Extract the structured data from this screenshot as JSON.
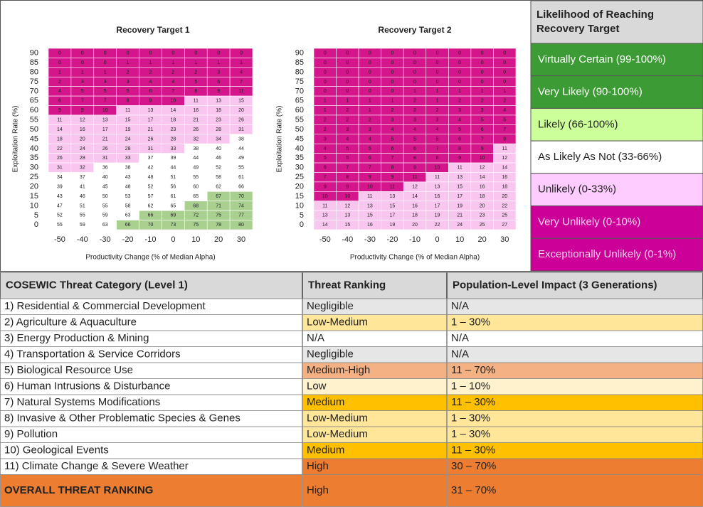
{
  "chart_data": [
    {
      "type": "heatmap",
      "title": "Recovery Target 1",
      "ylabel": "Exploitation Rate (%)",
      "xlabel": "Productivity Change (% of Median Alpha)",
      "rows": [
        90,
        85,
        80,
        75,
        70,
        65,
        60,
        55,
        50,
        45,
        40,
        35,
        30,
        25,
        20,
        15,
        10,
        5,
        0
      ],
      "columns": [
        -50,
        -40,
        -30,
        -20,
        -10,
        0,
        10,
        20,
        30
      ],
      "values": [
        [
          0,
          0,
          0,
          0,
          0,
          0,
          0,
          0,
          0
        ],
        [
          0,
          0,
          0,
          1,
          1,
          1,
          1,
          1,
          1
        ],
        [
          1,
          1,
          1,
          2,
          2,
          2,
          2,
          3,
          4
        ],
        [
          2,
          3,
          3,
          3,
          4,
          4,
          5,
          6,
          7
        ],
        [
          4,
          5,
          5,
          5,
          6,
          7,
          8,
          9,
          11
        ],
        [
          6,
          7,
          7,
          8,
          9,
          10,
          11,
          13,
          15
        ],
        [
          9,
          9,
          10,
          11,
          13,
          14,
          16,
          18,
          20
        ],
        [
          11,
          12,
          13,
          15,
          17,
          18,
          21,
          23,
          26
        ],
        [
          14,
          16,
          17,
          19,
          21,
          23,
          26,
          28,
          31
        ],
        [
          18,
          20,
          21,
          24,
          26,
          28,
          32,
          34,
          38
        ],
        [
          22,
          24,
          26,
          28,
          31,
          33,
          38,
          40,
          44
        ],
        [
          26,
          28,
          31,
          33,
          37,
          39,
          44,
          46,
          49
        ],
        [
          31,
          32,
          36,
          38,
          42,
          44,
          49,
          52,
          55
        ],
        [
          34,
          37,
          40,
          43,
          48,
          51,
          55,
          58,
          61
        ],
        [
          39,
          41,
          45,
          48,
          52,
          56,
          60,
          62,
          66
        ],
        [
          43,
          46,
          50,
          53,
          57,
          61,
          65,
          67,
          70
        ],
        [
          47,
          51,
          55,
          58,
          62,
          65,
          68,
          71,
          74
        ],
        [
          52,
          55,
          59,
          63,
          66,
          69,
          72,
          75,
          77
        ],
        [
          55,
          59,
          63,
          66,
          70,
          73,
          75,
          78,
          80
        ]
      ],
      "colors": [
        [
          "#d4158c",
          "#d4158c",
          "#d4158c",
          "#d4158c",
          "#d4158c",
          "#d4158c",
          "#d4158c",
          "#d4158c",
          "#d4158c"
        ],
        [
          "#d4158c",
          "#d4158c",
          "#d4158c",
          "#d4158c",
          "#d4158c",
          "#d4158c",
          "#d4158c",
          "#d4158c",
          "#d4158c"
        ],
        [
          "#d4158c",
          "#d4158c",
          "#d4158c",
          "#d4158c",
          "#d4158c",
          "#d4158c",
          "#d4158c",
          "#d4158c",
          "#d4158c"
        ],
        [
          "#d4158c",
          "#d4158c",
          "#d4158c",
          "#d4158c",
          "#d4158c",
          "#d4158c",
          "#d4158c",
          "#d4158c",
          "#d4158c"
        ],
        [
          "#d4158c",
          "#d4158c",
          "#d4158c",
          "#d4158c",
          "#d4158c",
          "#d4158c",
          "#d4158c",
          "#d4158c",
          "#d4158c"
        ],
        [
          "#d4158c",
          "#d4158c",
          "#d4158c",
          "#d4158c",
          "#d4158c",
          "#d4158c",
          "#f9c6ef",
          "#f9c6ef",
          "#f9c6ef"
        ],
        [
          "#d4158c",
          "#d4158c",
          "#d4158c",
          "#f9c6ef",
          "#f9c6ef",
          "#f9c6ef",
          "#f9c6ef",
          "#f9c6ef",
          "#f9c6ef"
        ],
        [
          "#f9c6ef",
          "#f9c6ef",
          "#f9c6ef",
          "#f9c6ef",
          "#f9c6ef",
          "#f9c6ef",
          "#f9c6ef",
          "#f9c6ef",
          "#f9c6ef"
        ],
        [
          "#f9c6ef",
          "#f9c6ef",
          "#f9c6ef",
          "#f9c6ef",
          "#f9c6ef",
          "#f9c6ef",
          "#f9c6ef",
          "#f9c6ef",
          "#f9c6ef"
        ],
        [
          "#f9c6ef",
          "#f9c6ef",
          "#f9c6ef",
          "#f9c6ef",
          "#f9c6ef",
          "#f9c6ef",
          "#f9c6ef",
          "#f9c6ef",
          "#ffffff"
        ],
        [
          "#f9c6ef",
          "#f9c6ef",
          "#f9c6ef",
          "#f9c6ef",
          "#f9c6ef",
          "#f9c6ef",
          "#ffffff",
          "#ffffff",
          "#ffffff"
        ],
        [
          "#f9c6ef",
          "#f9c6ef",
          "#f9c6ef",
          "#f9c6ef",
          "#ffffff",
          "#ffffff",
          "#ffffff",
          "#ffffff",
          "#ffffff"
        ],
        [
          "#f9c6ef",
          "#f9c6ef",
          "#ffffff",
          "#ffffff",
          "#ffffff",
          "#ffffff",
          "#ffffff",
          "#ffffff",
          "#ffffff"
        ],
        [
          "#ffffff",
          "#ffffff",
          "#ffffff",
          "#ffffff",
          "#ffffff",
          "#ffffff",
          "#ffffff",
          "#ffffff",
          "#ffffff"
        ],
        [
          "#ffffff",
          "#ffffff",
          "#ffffff",
          "#ffffff",
          "#ffffff",
          "#ffffff",
          "#ffffff",
          "#ffffff",
          "#ffffff"
        ],
        [
          "#ffffff",
          "#ffffff",
          "#ffffff",
          "#ffffff",
          "#ffffff",
          "#ffffff",
          "#ffffff",
          "#a9d08e",
          "#a9d08e"
        ],
        [
          "#ffffff",
          "#ffffff",
          "#ffffff",
          "#ffffff",
          "#ffffff",
          "#ffffff",
          "#a9d08e",
          "#a9d08e",
          "#a9d08e"
        ],
        [
          "#ffffff",
          "#ffffff",
          "#ffffff",
          "#ffffff",
          "#a9d08e",
          "#a9d08e",
          "#a9d08e",
          "#a9d08e",
          "#a9d08e"
        ],
        [
          "#ffffff",
          "#ffffff",
          "#ffffff",
          "#a9d08e",
          "#a9d08e",
          "#a9d08e",
          "#a9d08e",
          "#a9d08e",
          "#a9d08e"
        ]
      ]
    },
    {
      "type": "heatmap",
      "title": "Recovery Target 2",
      "ylabel": "Exploitation Rate (%)",
      "xlabel": "Productivity Change (% of Median Alpha)",
      "rows": [
        90,
        85,
        80,
        75,
        70,
        65,
        60,
        55,
        50,
        45,
        40,
        35,
        30,
        25,
        20,
        15,
        10,
        5,
        0
      ],
      "columns": [
        -50,
        -40,
        -30,
        -20,
        -10,
        0,
        10,
        20,
        30
      ],
      "values": [
        [
          0,
          0,
          0,
          0,
          0,
          0,
          0,
          0,
          0
        ],
        [
          0,
          0,
          0,
          0,
          0,
          0,
          0,
          0,
          0
        ],
        [
          0,
          0,
          0,
          0,
          0,
          0,
          0,
          0,
          0
        ],
        [
          0,
          0,
          0,
          0,
          0,
          0,
          0,
          0,
          0
        ],
        [
          0,
          0,
          0,
          0,
          1,
          1,
          1,
          1,
          1
        ],
        [
          1,
          1,
          1,
          1,
          2,
          1,
          2,
          2,
          2
        ],
        [
          1,
          2,
          1,
          2,
          2,
          2,
          3,
          3,
          4
        ],
        [
          2,
          2,
          2,
          3,
          3,
          3,
          4,
          5,
          5
        ],
        [
          2,
          3,
          3,
          4,
          4,
          4,
          5,
          6,
          7
        ],
        [
          3,
          4,
          4,
          5,
          5,
          5,
          6,
          7,
          9
        ],
        [
          4,
          5,
          5,
          6,
          6,
          7,
          8,
          9,
          11
        ],
        [
          5,
          5,
          6,
          7,
          8,
          8,
          9,
          10,
          12
        ],
        [
          6,
          7,
          7,
          8,
          9,
          10,
          11,
          12,
          14
        ],
        [
          7,
          8,
          9,
          9,
          11,
          11,
          13,
          14,
          16
        ],
        [
          9,
          9,
          10,
          11,
          12,
          13,
          15,
          16,
          18
        ],
        [
          10,
          10,
          11,
          13,
          14,
          16,
          17,
          18,
          20
        ],
        [
          11,
          12,
          13,
          15,
          16,
          17,
          19,
          20,
          22
        ],
        [
          13,
          13,
          15,
          17,
          18,
          19,
          21,
          23,
          25
        ],
        [
          14,
          15,
          16,
          19,
          20,
          22,
          24,
          25,
          27
        ]
      ],
      "colors": [
        [
          "#d4158c",
          "#d4158c",
          "#d4158c",
          "#d4158c",
          "#d4158c",
          "#d4158c",
          "#d4158c",
          "#d4158c",
          "#d4158c"
        ],
        [
          "#d4158c",
          "#d4158c",
          "#d4158c",
          "#d4158c",
          "#d4158c",
          "#d4158c",
          "#d4158c",
          "#d4158c",
          "#d4158c"
        ],
        [
          "#d4158c",
          "#d4158c",
          "#d4158c",
          "#d4158c",
          "#d4158c",
          "#d4158c",
          "#d4158c",
          "#d4158c",
          "#d4158c"
        ],
        [
          "#d4158c",
          "#d4158c",
          "#d4158c",
          "#d4158c",
          "#d4158c",
          "#d4158c",
          "#d4158c",
          "#d4158c",
          "#d4158c"
        ],
        [
          "#d4158c",
          "#d4158c",
          "#d4158c",
          "#d4158c",
          "#d4158c",
          "#d4158c",
          "#d4158c",
          "#d4158c",
          "#d4158c"
        ],
        [
          "#d4158c",
          "#d4158c",
          "#d4158c",
          "#d4158c",
          "#d4158c",
          "#d4158c",
          "#d4158c",
          "#d4158c",
          "#d4158c"
        ],
        [
          "#d4158c",
          "#d4158c",
          "#d4158c",
          "#d4158c",
          "#d4158c",
          "#d4158c",
          "#d4158c",
          "#d4158c",
          "#d4158c"
        ],
        [
          "#d4158c",
          "#d4158c",
          "#d4158c",
          "#d4158c",
          "#d4158c",
          "#d4158c",
          "#d4158c",
          "#d4158c",
          "#d4158c"
        ],
        [
          "#d4158c",
          "#d4158c",
          "#d4158c",
          "#d4158c",
          "#d4158c",
          "#d4158c",
          "#d4158c",
          "#d4158c",
          "#d4158c"
        ],
        [
          "#d4158c",
          "#d4158c",
          "#d4158c",
          "#d4158c",
          "#d4158c",
          "#d4158c",
          "#d4158c",
          "#d4158c",
          "#d4158c"
        ],
        [
          "#d4158c",
          "#d4158c",
          "#d4158c",
          "#d4158c",
          "#d4158c",
          "#d4158c",
          "#d4158c",
          "#d4158c",
          "#f9c6ef"
        ],
        [
          "#d4158c",
          "#d4158c",
          "#d4158c",
          "#d4158c",
          "#d4158c",
          "#d4158c",
          "#d4158c",
          "#d4158c",
          "#f9c6ef"
        ],
        [
          "#d4158c",
          "#d4158c",
          "#d4158c",
          "#d4158c",
          "#d4158c",
          "#d4158c",
          "#f9c6ef",
          "#f9c6ef",
          "#f9c6ef"
        ],
        [
          "#d4158c",
          "#d4158c",
          "#d4158c",
          "#d4158c",
          "#d4158c",
          "#f9c6ef",
          "#f9c6ef",
          "#f9c6ef",
          "#f9c6ef"
        ],
        [
          "#d4158c",
          "#d4158c",
          "#d4158c",
          "#d4158c",
          "#f9c6ef",
          "#f9c6ef",
          "#f9c6ef",
          "#f9c6ef",
          "#f9c6ef"
        ],
        [
          "#d4158c",
          "#d4158c",
          "#f9c6ef",
          "#f9c6ef",
          "#f9c6ef",
          "#f9c6ef",
          "#f9c6ef",
          "#f9c6ef",
          "#f9c6ef"
        ],
        [
          "#f9c6ef",
          "#f9c6ef",
          "#f9c6ef",
          "#f9c6ef",
          "#f9c6ef",
          "#f9c6ef",
          "#f9c6ef",
          "#f9c6ef",
          "#f9c6ef"
        ],
        [
          "#f9c6ef",
          "#f9c6ef",
          "#f9c6ef",
          "#f9c6ef",
          "#f9c6ef",
          "#f9c6ef",
          "#f9c6ef",
          "#f9c6ef",
          "#f9c6ef"
        ],
        [
          "#f9c6ef",
          "#f9c6ef",
          "#f9c6ef",
          "#f9c6ef",
          "#f9c6ef",
          "#f9c6ef",
          "#f9c6ef",
          "#f9c6ef",
          "#f9c6ef"
        ]
      ]
    }
  ],
  "legend": {
    "title": "Likelihood of Reaching Recovery Target",
    "header_color": "#d9d9d9",
    "items": [
      {
        "label": "Virtually Certain (99-100%)",
        "color": "#3d9b35",
        "text_color": "#ffffff"
      },
      {
        "label": "Very Likely (90-100%)",
        "color": "#3d9b35",
        "text_color": "#ffffff"
      },
      {
        "label": "Likely (66-100%)",
        "color": "#ccff99",
        "text_color": "#222222"
      },
      {
        "label": "As Likely As Not (33-66%)",
        "color": "#ffffff",
        "text_color": "#222222"
      },
      {
        "label": "Unlikely (0-33%)",
        "color": "#ffccff",
        "text_color": "#222222"
      },
      {
        "label": "Very Unlikely (0-10%)",
        "color": "#cc0099",
        "text_color": "#f4d4ee"
      },
      {
        "label": "Exceptionally Unlikely (0-1%)",
        "color": "#cc0099",
        "text_color": "#f4d4ee"
      }
    ]
  },
  "table": {
    "header": [
      "COSEWIC Threat Category (Level 1)",
      "Threat Ranking",
      "Population-Level Impact (3 Generations)"
    ],
    "header_color": "#d9d9d9",
    "rows": [
      {
        "cells": [
          "1) Residential & Commercial Development",
          "Negligible",
          "N/A"
        ],
        "colors": [
          "#ffffff",
          "#e7e6e6",
          "#e7e6e6"
        ]
      },
      {
        "cells": [
          "2) Agriculture & Aquaculture",
          "Low-Medium",
          "1 – 30%"
        ],
        "colors": [
          "#ffffff",
          "#ffe699",
          "#ffe699"
        ]
      },
      {
        "cells": [
          "3) Energy Production & Mining",
          "N/A",
          "N/A"
        ],
        "colors": [
          "#ffffff",
          "#ffffff",
          "#ffffff"
        ]
      },
      {
        "cells": [
          "4) Transportation & Service Corridors",
          "Negligible",
          "N/A"
        ],
        "colors": [
          "#ffffff",
          "#e7e6e6",
          "#e7e6e6"
        ]
      },
      {
        "cells": [
          "5) Biological Resource Use",
          "Medium-High",
          "11 – 70%"
        ],
        "colors": [
          "#ffffff",
          "#f4b183",
          "#f4b183"
        ]
      },
      {
        "cells": [
          "6) Human Intrusions & Disturbance",
          "Low",
          "1 – 10%"
        ],
        "colors": [
          "#ffffff",
          "#fff2cc",
          "#fff2cc"
        ]
      },
      {
        "cells": [
          "7) Natural Systems Modifications",
          "Medium",
          "11 – 30%"
        ],
        "colors": [
          "#ffffff",
          "#ffc000",
          "#ffc000"
        ]
      },
      {
        "cells": [
          "8) Invasive & Other Problematic Species & Genes",
          "Low-Medium",
          "1 – 30%"
        ],
        "colors": [
          "#ffffff",
          "#ffe699",
          "#ffe699"
        ]
      },
      {
        "cells": [
          "9) Pollution",
          "Low-Medium",
          "1 – 30%"
        ],
        "colors": [
          "#ffffff",
          "#ffe699",
          "#ffe699"
        ]
      },
      {
        "cells": [
          "10) Geological Events",
          "Medium",
          "11 – 30%"
        ],
        "colors": [
          "#ffffff",
          "#ffc000",
          "#ffc000"
        ]
      },
      {
        "cells": [
          "11) Climate Change & Severe Weather",
          "High",
          "30 – 70%"
        ],
        "colors": [
          "#ffffff",
          "#ed7d31",
          "#ed7d31"
        ]
      },
      {
        "cells": [
          "OVERALL THREAT RANKING",
          "High",
          "31 – 70%"
        ],
        "colors": [
          "#ed7d31",
          "#ed7d31",
          "#ed7d31"
        ]
      }
    ]
  }
}
